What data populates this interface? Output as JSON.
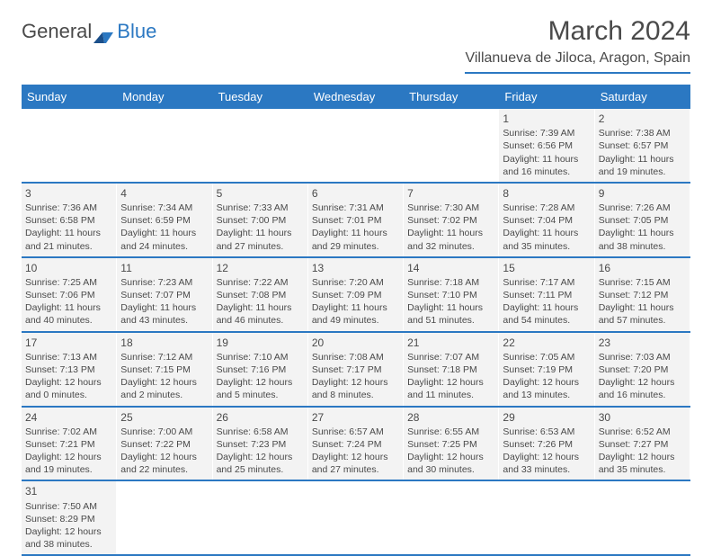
{
  "logo": {
    "text1": "General",
    "text2": "Blue"
  },
  "title": "March 2024",
  "location": "Villanueva de Jiloca, Aragon, Spain",
  "daynames": [
    "Sunday",
    "Monday",
    "Tuesday",
    "Wednesday",
    "Thursday",
    "Friday",
    "Saturday"
  ],
  "colors": {
    "brand_blue": "#2b78c2",
    "cell_bg": "#f3f3f3",
    "text": "#4a4a4a",
    "header_text": "#ffffff",
    "page_bg": "#ffffff"
  },
  "weeks": [
    [
      null,
      null,
      null,
      null,
      null,
      {
        "n": "1",
        "sunrise": "Sunrise: 7:39 AM",
        "sunset": "Sunset: 6:56 PM",
        "day1": "Daylight: 11 hours",
        "day2": "and 16 minutes."
      },
      {
        "n": "2",
        "sunrise": "Sunrise: 7:38 AM",
        "sunset": "Sunset: 6:57 PM",
        "day1": "Daylight: 11 hours",
        "day2": "and 19 minutes."
      }
    ],
    [
      {
        "n": "3",
        "sunrise": "Sunrise: 7:36 AM",
        "sunset": "Sunset: 6:58 PM",
        "day1": "Daylight: 11 hours",
        "day2": "and 21 minutes."
      },
      {
        "n": "4",
        "sunrise": "Sunrise: 7:34 AM",
        "sunset": "Sunset: 6:59 PM",
        "day1": "Daylight: 11 hours",
        "day2": "and 24 minutes."
      },
      {
        "n": "5",
        "sunrise": "Sunrise: 7:33 AM",
        "sunset": "Sunset: 7:00 PM",
        "day1": "Daylight: 11 hours",
        "day2": "and 27 minutes."
      },
      {
        "n": "6",
        "sunrise": "Sunrise: 7:31 AM",
        "sunset": "Sunset: 7:01 PM",
        "day1": "Daylight: 11 hours",
        "day2": "and 29 minutes."
      },
      {
        "n": "7",
        "sunrise": "Sunrise: 7:30 AM",
        "sunset": "Sunset: 7:02 PM",
        "day1": "Daylight: 11 hours",
        "day2": "and 32 minutes."
      },
      {
        "n": "8",
        "sunrise": "Sunrise: 7:28 AM",
        "sunset": "Sunset: 7:04 PM",
        "day1": "Daylight: 11 hours",
        "day2": "and 35 minutes."
      },
      {
        "n": "9",
        "sunrise": "Sunrise: 7:26 AM",
        "sunset": "Sunset: 7:05 PM",
        "day1": "Daylight: 11 hours",
        "day2": "and 38 minutes."
      }
    ],
    [
      {
        "n": "10",
        "sunrise": "Sunrise: 7:25 AM",
        "sunset": "Sunset: 7:06 PM",
        "day1": "Daylight: 11 hours",
        "day2": "and 40 minutes."
      },
      {
        "n": "11",
        "sunrise": "Sunrise: 7:23 AM",
        "sunset": "Sunset: 7:07 PM",
        "day1": "Daylight: 11 hours",
        "day2": "and 43 minutes."
      },
      {
        "n": "12",
        "sunrise": "Sunrise: 7:22 AM",
        "sunset": "Sunset: 7:08 PM",
        "day1": "Daylight: 11 hours",
        "day2": "and 46 minutes."
      },
      {
        "n": "13",
        "sunrise": "Sunrise: 7:20 AM",
        "sunset": "Sunset: 7:09 PM",
        "day1": "Daylight: 11 hours",
        "day2": "and 49 minutes."
      },
      {
        "n": "14",
        "sunrise": "Sunrise: 7:18 AM",
        "sunset": "Sunset: 7:10 PM",
        "day1": "Daylight: 11 hours",
        "day2": "and 51 minutes."
      },
      {
        "n": "15",
        "sunrise": "Sunrise: 7:17 AM",
        "sunset": "Sunset: 7:11 PM",
        "day1": "Daylight: 11 hours",
        "day2": "and 54 minutes."
      },
      {
        "n": "16",
        "sunrise": "Sunrise: 7:15 AM",
        "sunset": "Sunset: 7:12 PM",
        "day1": "Daylight: 11 hours",
        "day2": "and 57 minutes."
      }
    ],
    [
      {
        "n": "17",
        "sunrise": "Sunrise: 7:13 AM",
        "sunset": "Sunset: 7:13 PM",
        "day1": "Daylight: 12 hours",
        "day2": "and 0 minutes."
      },
      {
        "n": "18",
        "sunrise": "Sunrise: 7:12 AM",
        "sunset": "Sunset: 7:15 PM",
        "day1": "Daylight: 12 hours",
        "day2": "and 2 minutes."
      },
      {
        "n": "19",
        "sunrise": "Sunrise: 7:10 AM",
        "sunset": "Sunset: 7:16 PM",
        "day1": "Daylight: 12 hours",
        "day2": "and 5 minutes."
      },
      {
        "n": "20",
        "sunrise": "Sunrise: 7:08 AM",
        "sunset": "Sunset: 7:17 PM",
        "day1": "Daylight: 12 hours",
        "day2": "and 8 minutes."
      },
      {
        "n": "21",
        "sunrise": "Sunrise: 7:07 AM",
        "sunset": "Sunset: 7:18 PM",
        "day1": "Daylight: 12 hours",
        "day2": "and 11 minutes."
      },
      {
        "n": "22",
        "sunrise": "Sunrise: 7:05 AM",
        "sunset": "Sunset: 7:19 PM",
        "day1": "Daylight: 12 hours",
        "day2": "and 13 minutes."
      },
      {
        "n": "23",
        "sunrise": "Sunrise: 7:03 AM",
        "sunset": "Sunset: 7:20 PM",
        "day1": "Daylight: 12 hours",
        "day2": "and 16 minutes."
      }
    ],
    [
      {
        "n": "24",
        "sunrise": "Sunrise: 7:02 AM",
        "sunset": "Sunset: 7:21 PM",
        "day1": "Daylight: 12 hours",
        "day2": "and 19 minutes."
      },
      {
        "n": "25",
        "sunrise": "Sunrise: 7:00 AM",
        "sunset": "Sunset: 7:22 PM",
        "day1": "Daylight: 12 hours",
        "day2": "and 22 minutes."
      },
      {
        "n": "26",
        "sunrise": "Sunrise: 6:58 AM",
        "sunset": "Sunset: 7:23 PM",
        "day1": "Daylight: 12 hours",
        "day2": "and 25 minutes."
      },
      {
        "n": "27",
        "sunrise": "Sunrise: 6:57 AM",
        "sunset": "Sunset: 7:24 PM",
        "day1": "Daylight: 12 hours",
        "day2": "and 27 minutes."
      },
      {
        "n": "28",
        "sunrise": "Sunrise: 6:55 AM",
        "sunset": "Sunset: 7:25 PM",
        "day1": "Daylight: 12 hours",
        "day2": "and 30 minutes."
      },
      {
        "n": "29",
        "sunrise": "Sunrise: 6:53 AM",
        "sunset": "Sunset: 7:26 PM",
        "day1": "Daylight: 12 hours",
        "day2": "and 33 minutes."
      },
      {
        "n": "30",
        "sunrise": "Sunrise: 6:52 AM",
        "sunset": "Sunset: 7:27 PM",
        "day1": "Daylight: 12 hours",
        "day2": "and 35 minutes."
      }
    ],
    [
      {
        "n": "31",
        "sunrise": "Sunrise: 7:50 AM",
        "sunset": "Sunset: 8:29 PM",
        "day1": "Daylight: 12 hours",
        "day2": "and 38 minutes."
      },
      null,
      null,
      null,
      null,
      null,
      null
    ]
  ]
}
